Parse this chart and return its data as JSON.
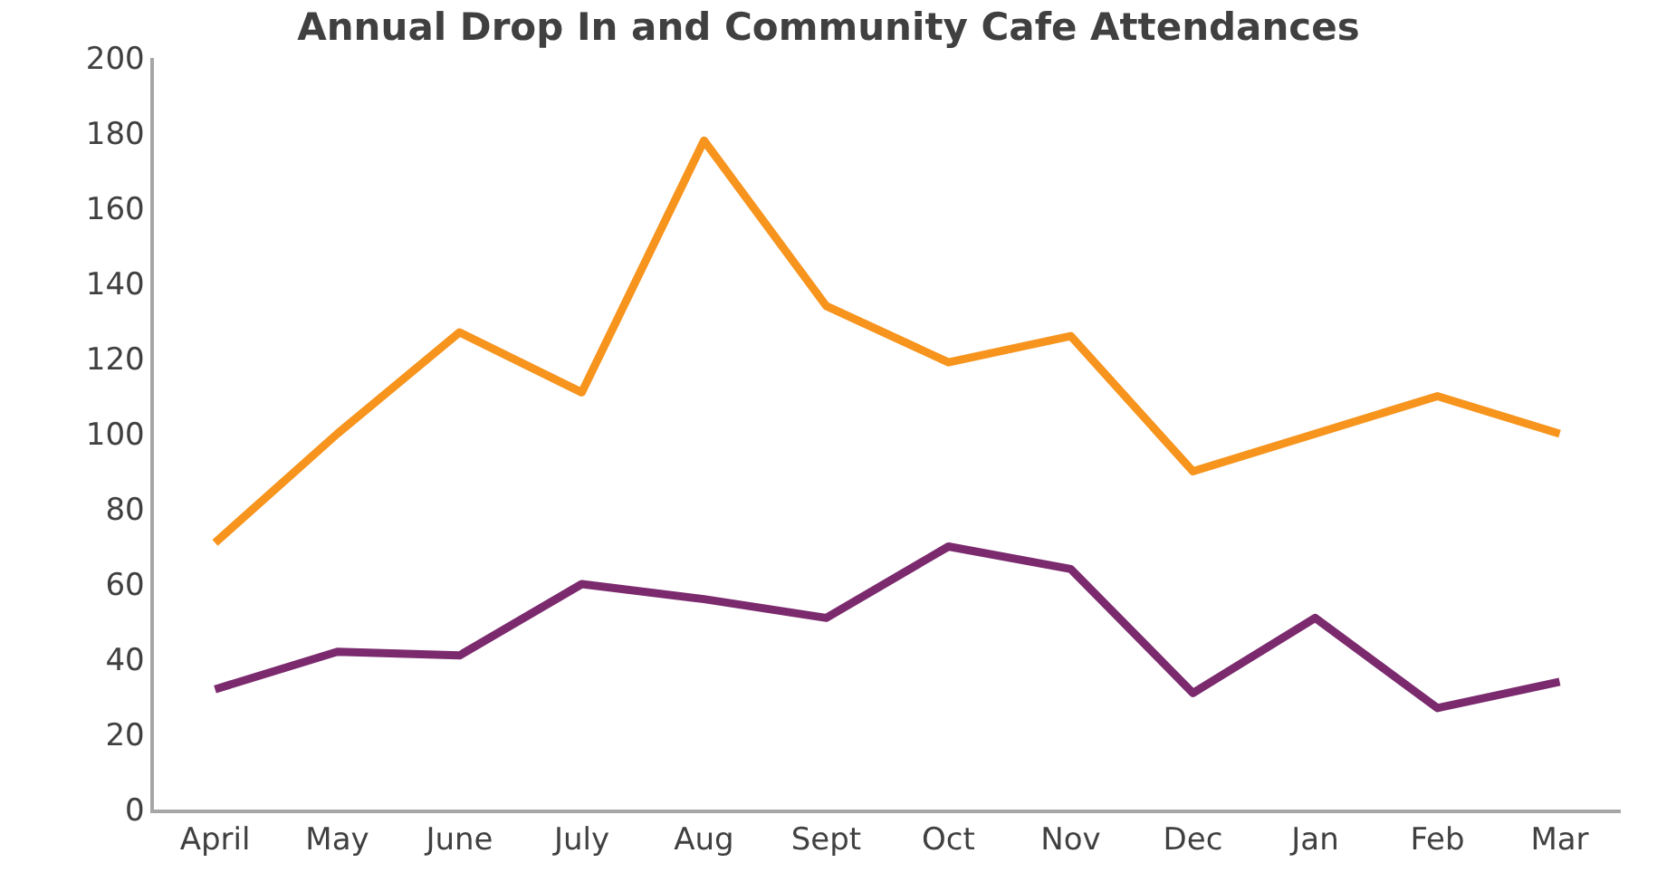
{
  "chart_data": {
    "type": "line",
    "title": "Annual Drop In and Community Cafe Attendances",
    "categories": [
      "April",
      "May",
      "June",
      "July",
      "Aug",
      "Sept",
      "Oct",
      "Nov",
      "Dec",
      "Jan",
      "Feb",
      "Mar"
    ],
    "series": [
      {
        "color": "#f7941d",
        "values": [
          71,
          100,
          127,
          111,
          178,
          134,
          119,
          126,
          90,
          100,
          110,
          100
        ]
      },
      {
        "color": "#7b2a6e",
        "values": [
          32,
          42,
          41,
          60,
          56,
          51,
          70,
          64,
          31,
          51,
          27,
          34
        ]
      }
    ],
    "ylim": [
      0,
      200
    ],
    "yticks": [
      0,
      20,
      40,
      60,
      80,
      100,
      120,
      140,
      160,
      180,
      200
    ],
    "grid": false,
    "legend": false,
    "marker": "none",
    "line_style": "solid"
  }
}
